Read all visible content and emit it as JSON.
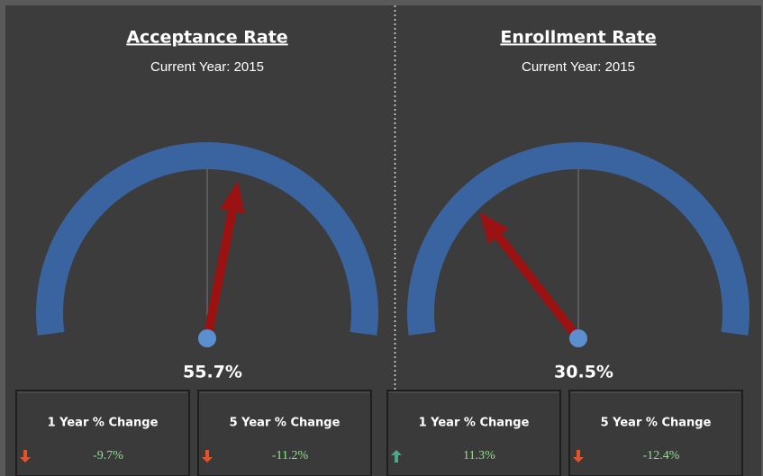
{
  "chart_data": [
    {
      "type": "gauge",
      "title": "Acceptance Rate",
      "subtitle": "Current Year: 2015",
      "values": [
        55.7
      ],
      "value_labels": [
        "55.7%"
      ],
      "ylim": [
        0,
        100
      ],
      "color": "#3a64a0",
      "needle_color": "#9b1212",
      "changes": {
        "categories": [
          "1 Year % Change",
          "5 Year % Change"
        ],
        "values": [
          -9.7,
          -11.2
        ],
        "value_labels": [
          "-9.7%",
          "-11.2%"
        ]
      }
    },
    {
      "type": "gauge",
      "title": "Enrollment Rate",
      "subtitle": "Current Year: 2015",
      "values": [
        30.5
      ],
      "value_labels": [
        "30.5%"
      ],
      "ylim": [
        0,
        100
      ],
      "color": "#3a64a0",
      "needle_color": "#9b1212",
      "changes": {
        "categories": [
          "1 Year % Change",
          "5 Year % Change"
        ],
        "values": [
          11.3,
          -12.4
        ],
        "value_labels": [
          "11.3%",
          "-12.4%"
        ]
      }
    }
  ]
}
